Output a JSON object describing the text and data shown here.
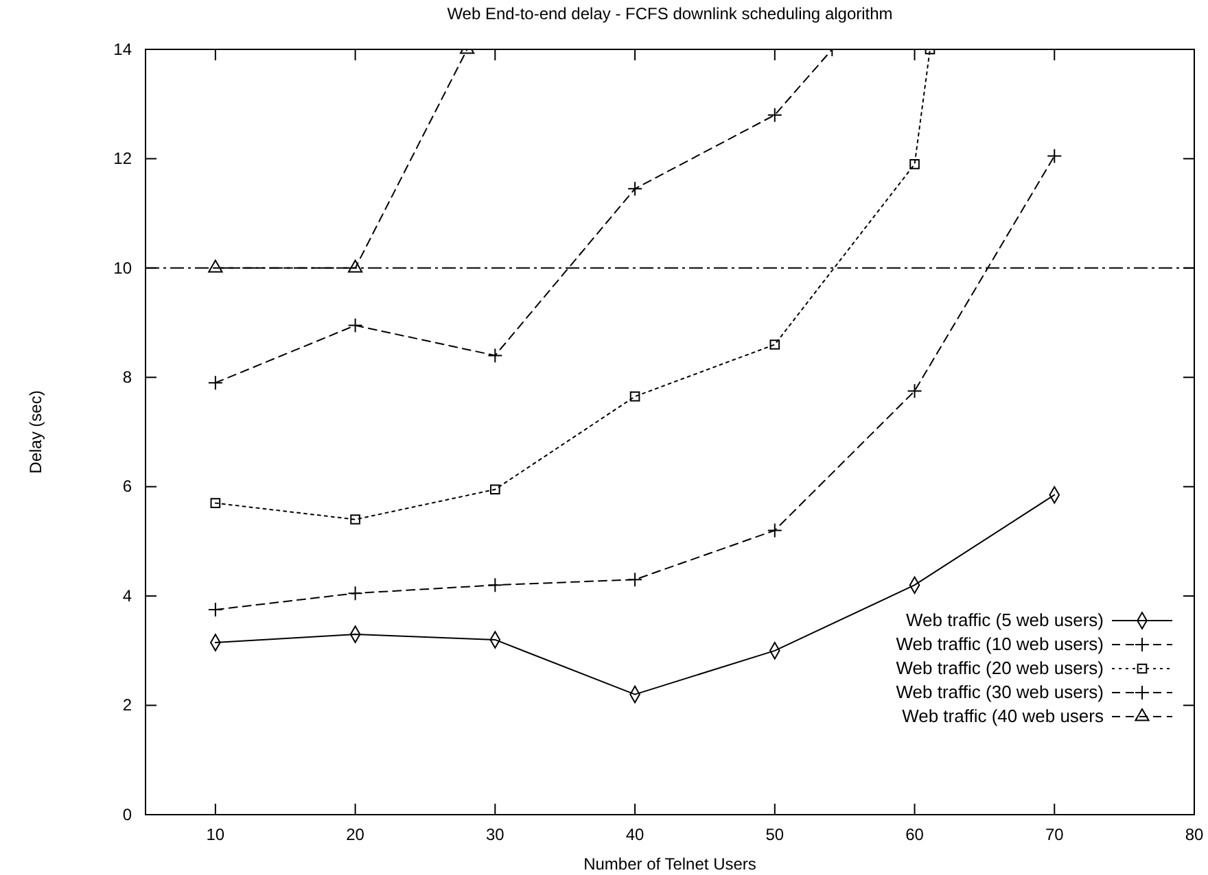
{
  "chart_data": {
    "type": "line",
    "title": "Web End-to-end delay - FCFS downlink scheduling algorithm",
    "xlabel": "Number of Telnet Users",
    "ylabel": "Delay (sec)",
    "xlim": [
      5,
      80
    ],
    "xticks": [
      10,
      20,
      30,
      40,
      50,
      60,
      70,
      80
    ],
    "ylim": [
      0,
      14
    ],
    "yticks": [
      0,
      2,
      4,
      6,
      8,
      10,
      12,
      14
    ],
    "grid": false,
    "legend": "right",
    "ref_lines": [
      {
        "axis": "y",
        "value": 10,
        "color": "#000000",
        "line_style": "dashed"
      }
    ],
    "series": [
      {
        "name": "Web traffic  (5 web users)",
        "color": "#000000",
        "marker": "diamond",
        "line_style": "solid",
        "x": [
          10,
          20,
          30,
          40,
          50,
          60,
          70
        ],
        "values": [
          3.15,
          3.3,
          3.2,
          2.2,
          3.0,
          4.2,
          5.85
        ]
      },
      {
        "name": "Web traffic (10 web users)",
        "color": "#000000",
        "marker": "cross",
        "line_style": "dashed",
        "x": [
          10,
          20,
          30,
          40,
          50,
          60,
          70
        ],
        "values": [
          3.75,
          4.05,
          4.2,
          4.3,
          5.2,
          7.75,
          12.05
        ]
      },
      {
        "name": "Web traffic (20 web users)",
        "color": "#000000",
        "marker": "square",
        "line_style": "dotted",
        "x": [
          10,
          20,
          30,
          40,
          50,
          60,
          61.1
        ],
        "values": [
          5.7,
          5.4,
          5.95,
          7.65,
          8.6,
          11.9,
          14
        ]
      },
      {
        "name": "Web traffic (30 web users)",
        "color": "#000000",
        "marker": "cross",
        "line_style": "dashed",
        "x": [
          10,
          20,
          30,
          40,
          50,
          54.1
        ],
        "values": [
          7.9,
          8.95,
          8.4,
          11.45,
          12.8,
          14
        ]
      },
      {
        "name": "Web traffic (40 web users",
        "color": "#000000",
        "marker": "triangle",
        "line_style": "dashed",
        "x": [
          10,
          20,
          28
        ],
        "values": [
          10,
          10,
          14
        ]
      }
    ]
  }
}
